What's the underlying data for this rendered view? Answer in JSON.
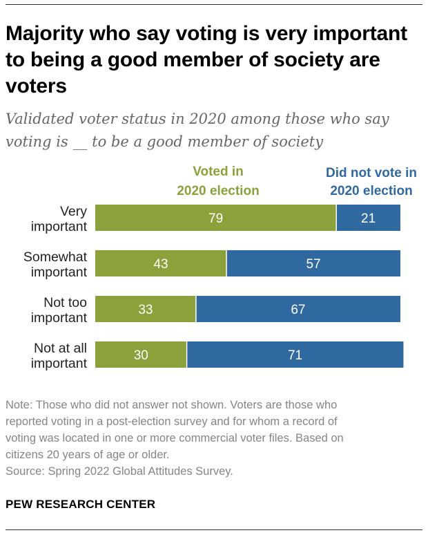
{
  "title": "Majority who say voting is very important to being a good member of society are voters",
  "subtitle": "Validated voter status in 2020 among those who say voting is __ to be a good member of society",
  "chart_data": {
    "type": "bar",
    "orientation": "horizontal",
    "stacked": true,
    "categories": [
      [
        "Very",
        "important"
      ],
      [
        "Somewhat",
        "important"
      ],
      [
        "Not too",
        "important"
      ],
      [
        "Not at all",
        "important"
      ]
    ],
    "series": [
      {
        "name": [
          "Voted in",
          "2020 election"
        ],
        "values": [
          79,
          43,
          33,
          30
        ],
        "color": "#8aa13c"
      },
      {
        "name": [
          "Did not vote in",
          "2020 election"
        ],
        "values": [
          21,
          57,
          67,
          71
        ],
        "color": "#2f69a0"
      }
    ],
    "xlim": [
      0,
      100
    ],
    "legend": "top",
    "grid": false
  },
  "notes": [
    "Note: Those who did not answer not shown. Voters are those who",
    "reported voting in a post-election survey and for whom a record of",
    "voting was located in one or more commercial voter files. Based on",
    "citizens 20 years of age or older."
  ],
  "source": "Source: Spring 2022 Global Attitudes Survey.",
  "brand": "PEW RESEARCH CENTER"
}
